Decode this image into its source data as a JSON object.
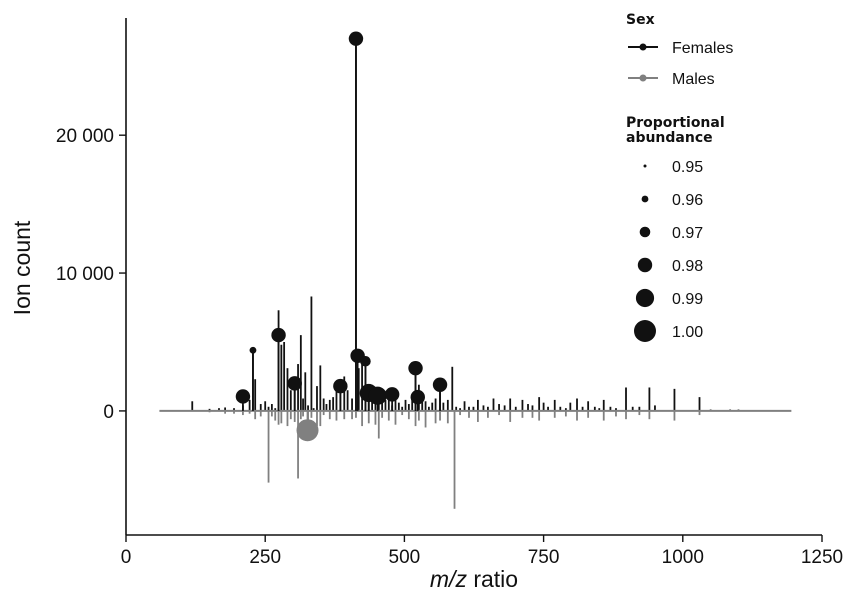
{
  "chart_data": {
    "type": "lollipop",
    "xlabel": {
      "italic": "m/z",
      "rest": " ratio"
    },
    "ylabel": "Ion count",
    "xlim": [
      0,
      1250
    ],
    "ylim": [
      -9000,
      28500
    ],
    "x_ticks": [
      0,
      250,
      500,
      750,
      1000,
      1250
    ],
    "x_tick_labels": [
      "0",
      "250",
      "500",
      "750",
      "1000",
      "1250"
    ],
    "y_ticks": [
      0,
      10000,
      20000
    ],
    "y_tick_labels": [
      "0",
      "10 000",
      "20 000"
    ],
    "baseline_range": [
      60,
      1195
    ],
    "colors": {
      "Females": "#111111",
      "Males": "#808080"
    },
    "series": [
      {
        "name": "Females",
        "direction": "up",
        "stems": [
          [
            119,
            700
          ],
          [
            150,
            150
          ],
          [
            167,
            200
          ],
          [
            178,
            250
          ],
          [
            194,
            200
          ],
          [
            210,
            400
          ],
          [
            222,
            800
          ],
          [
            228,
            4400
          ],
          [
            232,
            2300
          ],
          [
            242,
            500
          ],
          [
            250,
            700
          ],
          [
            256,
            300
          ],
          [
            262,
            500
          ],
          [
            268,
            200
          ],
          [
            274,
            7300
          ],
          [
            279,
            4800
          ],
          [
            284,
            5000
          ],
          [
            290,
            3100
          ],
          [
            296,
            1500
          ],
          [
            303,
            2000
          ],
          [
            309,
            3400
          ],
          [
            314,
            5500
          ],
          [
            318,
            900
          ],
          [
            322,
            2800
          ],
          [
            327,
            400
          ],
          [
            333,
            8300
          ],
          [
            337,
            200
          ],
          [
            343,
            1800
          ],
          [
            349,
            3300
          ],
          [
            355,
            900
          ],
          [
            360,
            500
          ],
          [
            366,
            800
          ],
          [
            372,
            1000
          ],
          [
            378,
            1400
          ],
          [
            385,
            1800
          ],
          [
            392,
            2500
          ],
          [
            398,
            1500
          ],
          [
            406,
            900
          ],
          [
            413,
            27000
          ],
          [
            418,
            3100
          ],
          [
            424,
            3900
          ],
          [
            430,
            3700
          ],
          [
            436,
            1800
          ],
          [
            442,
            1300
          ],
          [
            448,
            900
          ],
          [
            454,
            600
          ],
          [
            460,
            1200
          ],
          [
            466,
            800
          ],
          [
            472,
            900
          ],
          [
            478,
            400
          ],
          [
            484,
            1100
          ],
          [
            490,
            600
          ],
          [
            496,
            300
          ],
          [
            502,
            800
          ],
          [
            508,
            500
          ],
          [
            514,
            1000
          ],
          [
            520,
            3000
          ],
          [
            526,
            1900
          ],
          [
            532,
            800
          ],
          [
            538,
            700
          ],
          [
            544,
            300
          ],
          [
            550,
            600
          ],
          [
            556,
            900
          ],
          [
            564,
            1900
          ],
          [
            570,
            600
          ],
          [
            578,
            800
          ],
          [
            586,
            3200
          ],
          [
            593,
            300
          ],
          [
            600,
            200
          ],
          [
            608,
            700
          ],
          [
            616,
            300
          ],
          [
            624,
            300
          ],
          [
            632,
            800
          ],
          [
            642,
            400
          ],
          [
            650,
            300
          ],
          [
            660,
            900
          ],
          [
            670,
            500
          ],
          [
            680,
            400
          ],
          [
            690,
            900
          ],
          [
            700,
            300
          ],
          [
            712,
            800
          ],
          [
            722,
            500
          ],
          [
            730,
            400
          ],
          [
            742,
            1000
          ],
          [
            750,
            600
          ],
          [
            758,
            300
          ],
          [
            770,
            800
          ],
          [
            780,
            300
          ],
          [
            790,
            200
          ],
          [
            798,
            600
          ],
          [
            810,
            900
          ],
          [
            820,
            300
          ],
          [
            830,
            700
          ],
          [
            842,
            300
          ],
          [
            850,
            200
          ],
          [
            858,
            800
          ],
          [
            870,
            300
          ],
          [
            880,
            200
          ],
          [
            898,
            1700
          ],
          [
            910,
            300
          ],
          [
            922,
            300
          ],
          [
            940,
            1700
          ],
          [
            950,
            400
          ],
          [
            985,
            1600
          ],
          [
            1030,
            1000
          ],
          [
            1050,
            100
          ],
          [
            1085,
            100
          ],
          [
            1100,
            100
          ]
        ],
        "points": [
          [
            210,
            1050,
            0.98
          ],
          [
            228,
            4400,
            0.96
          ],
          [
            274,
            5500,
            0.98
          ],
          [
            303,
            2000,
            0.98
          ],
          [
            385,
            1800,
            0.98
          ],
          [
            413,
            27000,
            0.98
          ],
          [
            416,
            4000,
            0.98
          ],
          [
            430,
            3600,
            0.97
          ],
          [
            436,
            1300,
            0.99
          ],
          [
            452,
            1100,
            0.99
          ],
          [
            478,
            1200,
            0.98
          ],
          [
            520,
            3100,
            0.98
          ],
          [
            524,
            1000,
            0.98
          ],
          [
            564,
            1900,
            0.98
          ]
        ]
      },
      {
        "name": "Males",
        "direction": "down",
        "stems": [
          [
            150,
            100
          ],
          [
            178,
            200
          ],
          [
            194,
            200
          ],
          [
            210,
            300
          ],
          [
            222,
            200
          ],
          [
            232,
            600
          ],
          [
            242,
            400
          ],
          [
            256,
            5200
          ],
          [
            262,
            400
          ],
          [
            268,
            700
          ],
          [
            274,
            1000
          ],
          [
            279,
            900
          ],
          [
            290,
            1100
          ],
          [
            296,
            600
          ],
          [
            303,
            800
          ],
          [
            309,
            4900
          ],
          [
            314,
            600
          ],
          [
            318,
            400
          ],
          [
            327,
            800
          ],
          [
            333,
            500
          ],
          [
            343,
            1100
          ],
          [
            349,
            1100
          ],
          [
            355,
            300
          ],
          [
            366,
            600
          ],
          [
            378,
            700
          ],
          [
            392,
            600
          ],
          [
            406,
            600
          ],
          [
            413,
            500
          ],
          [
            424,
            1100
          ],
          [
            436,
            900
          ],
          [
            448,
            1000
          ],
          [
            454,
            2000
          ],
          [
            460,
            500
          ],
          [
            472,
            700
          ],
          [
            484,
            1000
          ],
          [
            496,
            300
          ],
          [
            508,
            600
          ],
          [
            520,
            1100
          ],
          [
            526,
            700
          ],
          [
            538,
            1200
          ],
          [
            556,
            900
          ],
          [
            564,
            700
          ],
          [
            578,
            900
          ],
          [
            590,
            7100
          ],
          [
            600,
            300
          ],
          [
            616,
            500
          ],
          [
            632,
            800
          ],
          [
            650,
            500
          ],
          [
            670,
            300
          ],
          [
            690,
            800
          ],
          [
            712,
            500
          ],
          [
            730,
            500
          ],
          [
            742,
            700
          ],
          [
            770,
            500
          ],
          [
            790,
            400
          ],
          [
            810,
            700
          ],
          [
            830,
            500
          ],
          [
            858,
            700
          ],
          [
            880,
            400
          ],
          [
            898,
            600
          ],
          [
            922,
            300
          ],
          [
            940,
            600
          ],
          [
            985,
            700
          ],
          [
            1030,
            300
          ]
        ],
        "points": [
          [
            326,
            -1400,
            1.0
          ]
        ]
      }
    ],
    "legend": {
      "sex_title": "Sex",
      "sex_entries": [
        "Females",
        "Males"
      ],
      "size_title": [
        "Proportional",
        "abundance"
      ],
      "size_entries": [
        "0.95",
        "0.96",
        "0.97",
        "0.98",
        "0.99",
        "1.00"
      ]
    }
  }
}
